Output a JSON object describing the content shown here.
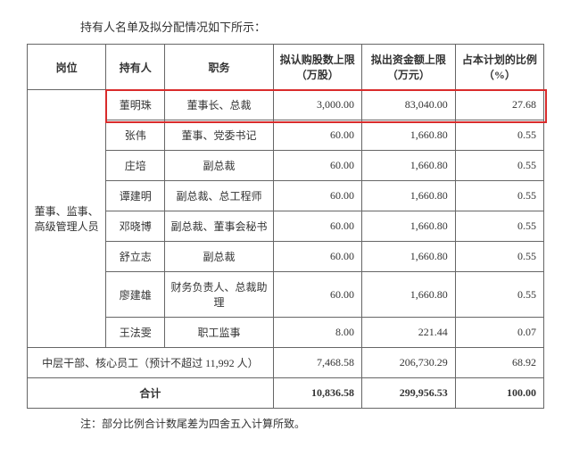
{
  "caption": "持有人名单及拟分配情况如下所示：",
  "columns": [
    "岗位",
    "持有人",
    "职务",
    "拟认购股数上限（万股）",
    "拟出资金额上限（万元）",
    "占本计划的比例（%）"
  ],
  "group_label": "董事、监事、高级管理人员",
  "rows": [
    {
      "holder": "董明珠",
      "position": "董事长、总裁",
      "shares": "3,000.00",
      "amount": "83,040.00",
      "ratio": "27.68",
      "highlight": true
    },
    {
      "holder": "张伟",
      "position": "董事、党委书记",
      "shares": "60.00",
      "amount": "1,660.80",
      "ratio": "0.55"
    },
    {
      "holder": "庄培",
      "position": "副总裁",
      "shares": "60.00",
      "amount": "1,660.80",
      "ratio": "0.55"
    },
    {
      "holder": "谭建明",
      "position": "副总裁、总工程师",
      "shares": "60.00",
      "amount": "1,660.80",
      "ratio": "0.55"
    },
    {
      "holder": "邓晓博",
      "position": "副总裁、董事会秘书",
      "shares": "60.00",
      "amount": "1,660.80",
      "ratio": "0.55"
    },
    {
      "holder": "舒立志",
      "position": "副总裁",
      "shares": "60.00",
      "amount": "1,660.80",
      "ratio": "0.55"
    },
    {
      "holder": "廖建雄",
      "position": "财务负责人、总裁助理",
      "shares": "60.00",
      "amount": "1,660.80",
      "ratio": "0.55"
    },
    {
      "holder": "王法雯",
      "position": "职工监事",
      "shares": "8.00",
      "amount": "221.44",
      "ratio": "0.07"
    }
  ],
  "mid_row": {
    "label": "中层干部、核心员工（预计不超过 11,992 人）",
    "shares": "7,468.58",
    "amount": "206,730.29",
    "ratio": "68.92"
  },
  "total_row": {
    "label": "合计",
    "shares": "10,836.58",
    "amount": "299,956.53",
    "ratio": "100.00"
  },
  "footnote": "注：部分比例合计数尾差为四舍五入计算所致。",
  "highlight_color": "#d92b2b"
}
